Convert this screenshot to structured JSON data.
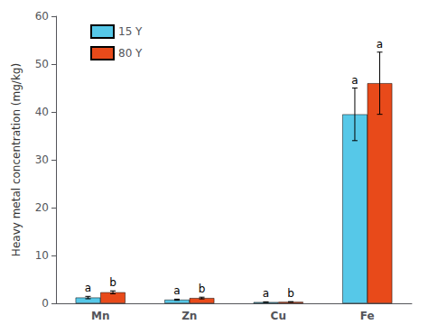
{
  "chart_data": {
    "type": "bar",
    "categories": [
      "Mn",
      "Zn",
      "Cu",
      "Fe"
    ],
    "ylabel": "Heavy metal concentration (mg/kg)",
    "series": [
      {
        "name": "15 Y",
        "color": "#56C8E8",
        "values": [
          1.2,
          0.75,
          0.25,
          39.5
        ],
        "errors": [
          0.25,
          0.12,
          0.06,
          5.5
        ],
        "annotations": [
          "a",
          "a",
          "a",
          "a"
        ]
      },
      {
        "name": "80 Y",
        "color": "#E84A1A",
        "values": [
          2.3,
          1.1,
          0.3,
          46.0
        ],
        "errors": [
          0.3,
          0.18,
          0.05,
          6.5
        ],
        "annotations": [
          "b",
          "b",
          "b",
          "a"
        ]
      }
    ],
    "ylim": [
      0,
      60
    ],
    "yticks": [
      0,
      10,
      20,
      30,
      40,
      50,
      60
    ],
    "grid": false,
    "legend": "upper left"
  }
}
